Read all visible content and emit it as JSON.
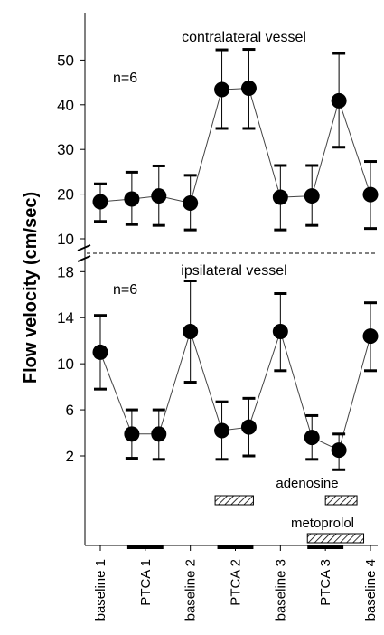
{
  "chart_data": {
    "type": "line",
    "ylabel": "Flow velocity (cm/sec)",
    "categories": [
      "baseline 1",
      "PTCA 1",
      "baseline 2",
      "PTCA 2",
      "baseline 3",
      "PTCA 3",
      "baseline 4"
    ],
    "x_positions": [
      1,
      1.7,
      2.3,
      3,
      3.7,
      4.3,
      5,
      5.7,
      6.3,
      7
    ],
    "panels": [
      {
        "name": "contralateral vessel",
        "n_label": "n=6",
        "yticks": [
          10,
          20,
          30,
          40,
          50
        ],
        "ylim": [
          7,
          60
        ],
        "points": [
          {
            "x": 1,
            "y": 18.3,
            "lo": 13.9,
            "hi": 22.3
          },
          {
            "x": 1.7,
            "y": 18.9,
            "lo": 13.2,
            "hi": 24.9
          },
          {
            "x": 2.3,
            "y": 19.6,
            "lo": 13.0,
            "hi": 26.3
          },
          {
            "x": 3,
            "y": 18.0,
            "lo": 12.0,
            "hi": 24.2
          },
          {
            "x": 3.7,
            "y": 43.4,
            "lo": 34.7,
            "hi": 52.3
          },
          {
            "x": 4.3,
            "y": 43.7,
            "lo": 34.7,
            "hi": 52.4
          },
          {
            "x": 5,
            "y": 19.3,
            "lo": 12.0,
            "hi": 26.4
          },
          {
            "x": 5.7,
            "y": 19.6,
            "lo": 13.0,
            "hi": 26.4
          },
          {
            "x": 6.3,
            "y": 40.9,
            "lo": 30.5,
            "hi": 51.5
          },
          {
            "x": 7,
            "y": 19.9,
            "lo": 12.3,
            "hi": 27.3
          }
        ]
      },
      {
        "name": "ipsilateral vessel",
        "n_label": "n=6",
        "yticks": [
          2,
          6,
          10,
          14,
          18
        ],
        "ylim": [
          -12.5,
          20
        ],
        "points": [
          {
            "x": 1,
            "y": 11.0,
            "lo": 7.8,
            "hi": 14.2
          },
          {
            "x": 1.7,
            "y": 3.9,
            "lo": 1.8,
            "hi": 6.0
          },
          {
            "x": 2.3,
            "y": 3.9,
            "lo": 1.7,
            "hi": 6.0
          },
          {
            "x": 3,
            "y": 12.8,
            "lo": 8.4,
            "hi": 17.2
          },
          {
            "x": 3.7,
            "y": 4.2,
            "lo": 1.7,
            "hi": 6.7
          },
          {
            "x": 4.3,
            "y": 4.5,
            "lo": 2.0,
            "hi": 7.0
          },
          {
            "x": 5,
            "y": 12.8,
            "lo": 9.4,
            "hi": 16.1
          },
          {
            "x": 5.7,
            "y": 3.6,
            "lo": 1.7,
            "hi": 5.5
          },
          {
            "x": 6.3,
            "y": 2.5,
            "lo": 0.8,
            "hi": 3.9
          },
          {
            "x": 7,
            "y": 12.4,
            "lo": 9.4,
            "hi": 15.3
          }
        ]
      }
    ],
    "treatment_bars": [
      {
        "label": "adenosine",
        "ranges": [
          [
            3.55,
            4.4
          ],
          [
            6.0,
            6.7
          ]
        ]
      },
      {
        "label": "metoprolol",
        "ranges": [
          [
            5.6,
            6.85
          ]
        ]
      }
    ],
    "ptca_periods": [
      [
        1.6,
        2.4
      ],
      [
        3.6,
        4.4
      ],
      [
        5.6,
        6.4
      ]
    ]
  }
}
